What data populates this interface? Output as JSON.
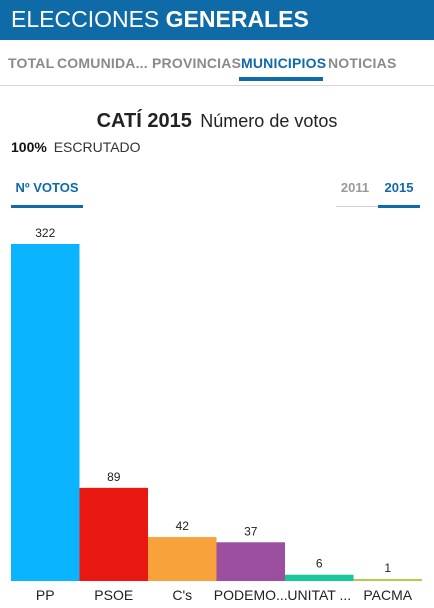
{
  "header": {
    "title_light": "ELECCIONES ",
    "title_bold": "GENERALES"
  },
  "nav": {
    "tabs": [
      {
        "label": "TOTAL",
        "active": false
      },
      {
        "label": "COMUNIDA...",
        "active": false
      },
      {
        "label": "PROVINCIAS",
        "active": false
      },
      {
        "label": "MUNICIPIOS",
        "active": true
      },
      {
        "label": "NOTICIAS",
        "active": false
      }
    ]
  },
  "title": {
    "place": "CATÍ 2015",
    "subtitle": "Número de votos"
  },
  "scrutiny": {
    "percent": "100%",
    "label": "ESCRUTADO"
  },
  "metric_tab": {
    "label": "Nº VOTOS"
  },
  "years": [
    {
      "label": "2011",
      "active": false
    },
    {
      "label": "2015",
      "active": true
    }
  ],
  "chart_data": {
    "type": "bar",
    "categories": [
      "PP",
      "PSOE",
      "C's",
      "PODEMO...",
      "UNITAT ...",
      "PACMA"
    ],
    "values": [
      322,
      89,
      42,
      37,
      6,
      1
    ],
    "colors": [
      "#0bb4ff",
      "#e8170f",
      "#f7a23b",
      "#9c4f9e",
      "#1dc59a",
      "#b8c84a"
    ],
    "title": "",
    "xlabel": "",
    "ylabel": "",
    "ylim": [
      0,
      322
    ],
    "grid": false,
    "legend": "none"
  }
}
